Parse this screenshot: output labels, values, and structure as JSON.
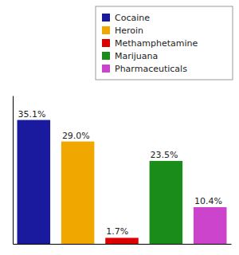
{
  "chart_data": {
    "type": "bar",
    "categories": [
      "Cocaine",
      "Heroin",
      "Methamphetamine",
      "Marijuana",
      "Pharmaceuticals"
    ],
    "values": [
      35.1,
      29.0,
      1.7,
      23.5,
      10.4
    ],
    "value_labels": [
      "35.1%",
      "29.0%",
      "1.7%",
      "23.5%",
      "10.4%"
    ],
    "colors": [
      "#1a1a9e",
      "#f0a800",
      "#dd0000",
      "#1a8c1a",
      "#cc44cc"
    ],
    "ylim": [
      0,
      42
    ],
    "data_labels": true,
    "tick_labels": false,
    "legend": "upper right"
  }
}
